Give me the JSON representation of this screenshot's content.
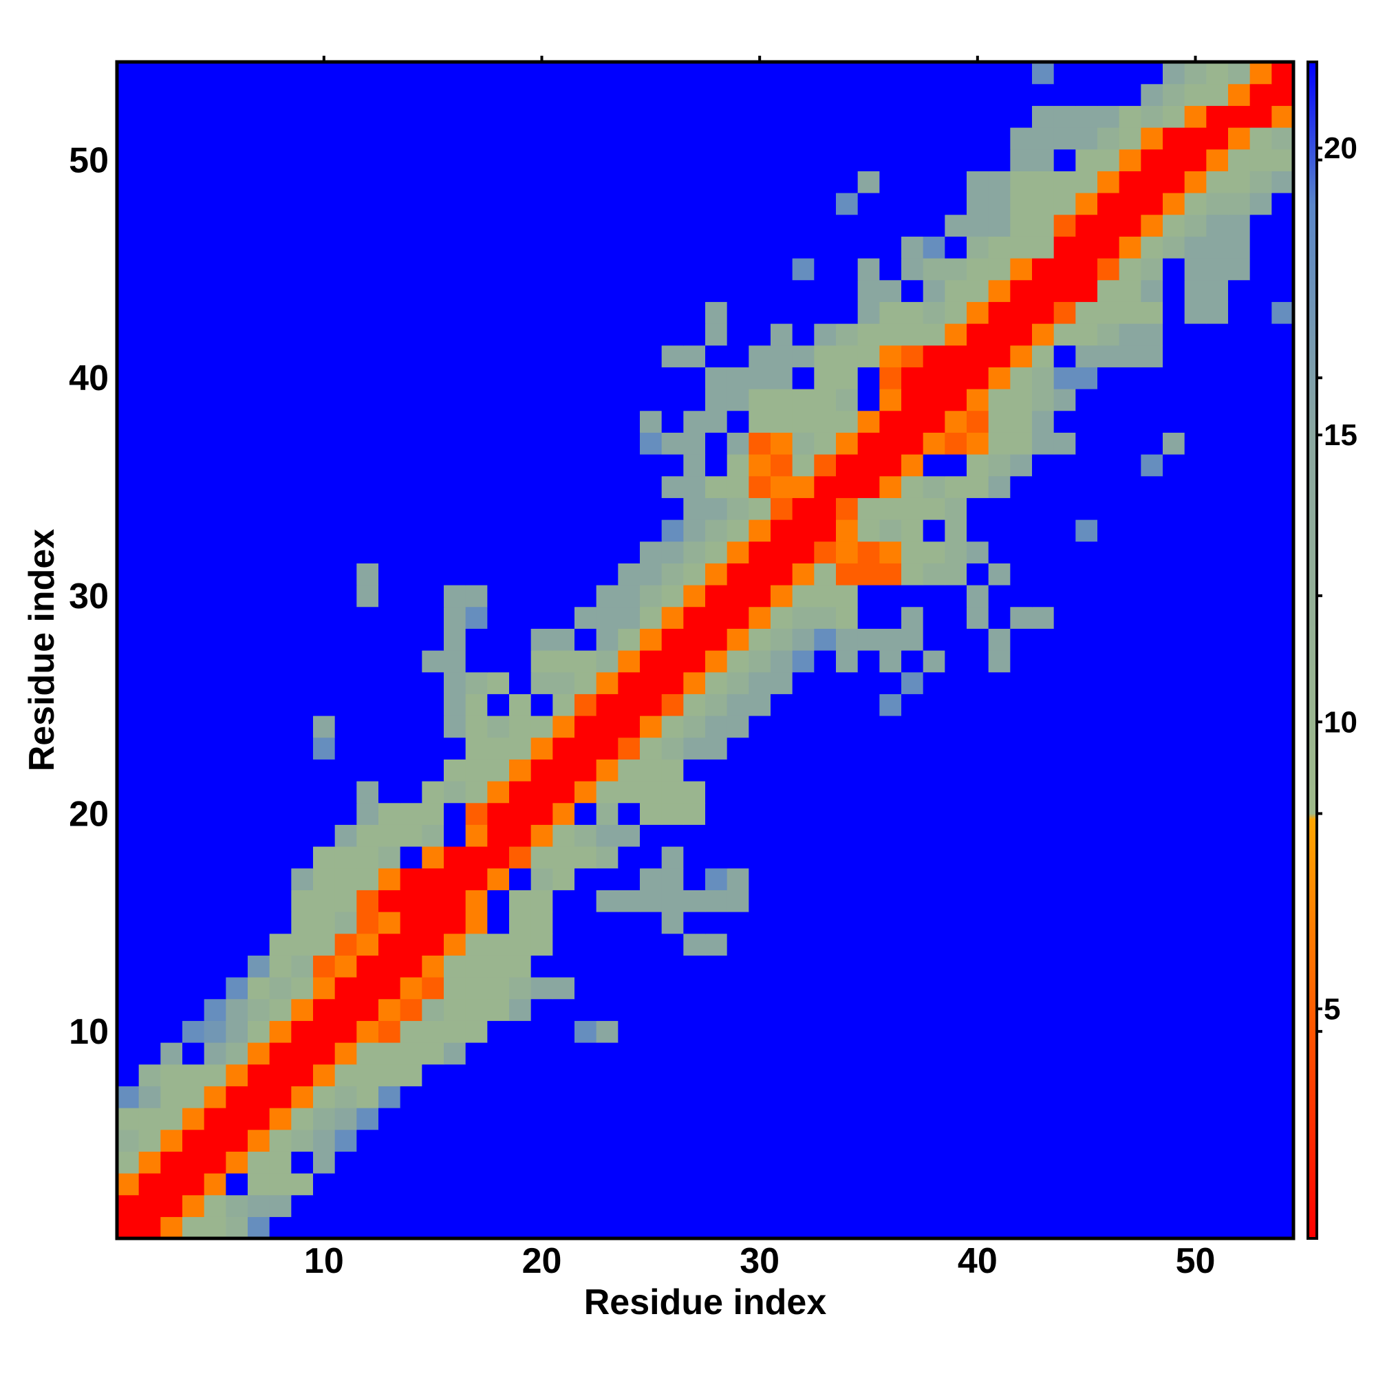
{
  "chart_data": {
    "type": "heatmap",
    "title": "",
    "xlabel": "Residue index",
    "ylabel": "Residue index",
    "n": 54,
    "xlim": [
      0.5,
      54.5
    ],
    "ylim": [
      0.5,
      54.5
    ],
    "x_ticks": [
      10,
      20,
      30,
      40,
      50
    ],
    "y_ticks": [
      10,
      20,
      30,
      40,
      50
    ],
    "colorbar": {
      "min": 1,
      "max": 21.5,
      "ticks": [
        5,
        10,
        15,
        20
      ],
      "stops": [
        {
          "value": 1.0,
          "color": "#ff0000"
        },
        {
          "value": 5.5,
          "color": "#ff6a00"
        },
        {
          "value": 8.3,
          "color": "#ffa500"
        },
        {
          "value": 8.4,
          "color": "#9fba8a"
        },
        {
          "value": 15.0,
          "color": "#8aa7a0"
        },
        {
          "value": 19.0,
          "color": "#5a86c8"
        },
        {
          "value": 21.5,
          "color": "#0000ff"
        }
      ]
    },
    "background_value": 21.5,
    "background_color": "#0000ff",
    "palette": {
      "red": "#ff0000",
      "orange_red": "#ff6a00",
      "orange": "#ffa500",
      "olive": "#9fba8a",
      "gray_blue": "#8aa7a0",
      "steel_blue": "#5a86c8",
      "blue": "#0000ff"
    },
    "cells_by_row": {
      "1": {
        "1": 1,
        "2": 1,
        "3": 6.5,
        "4": 10,
        "5": 10,
        "6": 12,
        "7": 18
      },
      "2": {
        "1": 1,
        "2": 1,
        "3": 1,
        "4": 6.5,
        "5": 10,
        "6": 13,
        "7": 15,
        "8": 15
      },
      "3": {
        "1": 6.5,
        "2": 1,
        "3": 1,
        "4": 1,
        "5": 6.5,
        "7": 10,
        "8": 10,
        "9": 10
      },
      "4": {
        "1": 10,
        "2": 6.5,
        "3": 1,
        "4": 1,
        "5": 1,
        "6": 6.5,
        "7": 10,
        "8": 10,
        "10": 15
      },
      "5": {
        "1": 12,
        "2": 10,
        "3": 6.5,
        "4": 1,
        "5": 1,
        "6": 1,
        "7": 6.5,
        "8": 10,
        "9": 12,
        "10": 15,
        "11": 18
      },
      "6": {
        "1": 10,
        "2": 10,
        "3": 10,
        "4": 6.5,
        "5": 1,
        "6": 1,
        "7": 1,
        "8": 6.5,
        "9": 10,
        "10": 13,
        "11": 15,
        "12": 18
      },
      "7": {
        "1": 18,
        "2": 15,
        "3": 10,
        "4": 10,
        "5": 6.5,
        "6": 1,
        "7": 1,
        "8": 1,
        "9": 6.5,
        "10": 10,
        "11": 12,
        "12": 10,
        "13": 18
      },
      "8": {
        "2": 12,
        "3": 10,
        "4": 10,
        "5": 10,
        "6": 6.5,
        "7": 1,
        "8": 1,
        "9": 1,
        "10": 6.5,
        "11": 10,
        "12": 10,
        "13": 10,
        "14": 10
      },
      "9": {
        "3": 15,
        "5": 15,
        "6": 12,
        "7": 6.5,
        "8": 1,
        "9": 1,
        "10": 1,
        "11": 6.5,
        "12": 10,
        "13": 10,
        "14": 10,
        "15": 10,
        "16": 15
      },
      "10": {
        "4": 18,
        "5": 17,
        "6": 15,
        "7": 10,
        "8": 6.5,
        "9": 1,
        "10": 1,
        "11": 1,
        "12": 6.5,
        "13": 5,
        "14": 10,
        "15": 10,
        "16": 10,
        "17": 10,
        "22": 18,
        "23": 15
      },
      "11": {
        "5": 18,
        "6": 15,
        "7": 12,
        "8": 10,
        "9": 6.5,
        "10": 1,
        "11": 1,
        "12": 1,
        "13": 6.5,
        "14": 5,
        "15": 12,
        "16": 10,
        "17": 10,
        "18": 10,
        "19": 15
      },
      "12": {
        "6": 18,
        "7": 10,
        "8": 12,
        "9": 10,
        "10": 6.5,
        "11": 1,
        "12": 1,
        "13": 1,
        "14": 6.5,
        "15": 5,
        "16": 10,
        "17": 10,
        "18": 10,
        "19": 12,
        "20": 15,
        "21": 15
      },
      "13": {
        "7": 17,
        "8": 10,
        "9": 12,
        "10": 5,
        "11": 6.5,
        "12": 1,
        "13": 1,
        "14": 1,
        "15": 6.5,
        "16": 10,
        "17": 10,
        "18": 10,
        "19": 10
      },
      "14": {
        "8": 10,
        "9": 10,
        "10": 10,
        "11": 5,
        "12": 6.5,
        "13": 1,
        "14": 1,
        "15": 1,
        "16": 6.5,
        "17": 10,
        "18": 10,
        "19": 10,
        "20": 10,
        "27": 15,
        "28": 15
      },
      "15": {
        "9": 10,
        "10": 10,
        "11": 12,
        "12": 5,
        "13": 6.5,
        "14": 1,
        "15": 1,
        "16": 1,
        "17": 6.5,
        "19": 10,
        "20": 10,
        "26": 15
      },
      "16": {
        "9": 10,
        "10": 10,
        "11": 10,
        "12": 5,
        "13": 1,
        "14": 1,
        "15": 1,
        "16": 1,
        "17": 6.5,
        "19": 10,
        "20": 10,
        "23": 15,
        "24": 15,
        "25": 15,
        "26": 15,
        "27": 15,
        "28": 15,
        "29": 15
      },
      "17": {
        "9": 15,
        "10": 10,
        "11": 10,
        "12": 10,
        "13": 6.5,
        "14": 1,
        "15": 1,
        "16": 1,
        "17": 1,
        "18": 6.5,
        "20": 12,
        "21": 10,
        "25": 15,
        "26": 15,
        "28": 18,
        "29": 15
      },
      "18": {
        "10": 10,
        "11": 10,
        "12": 10,
        "13": 12,
        "15": 6.5,
        "16": 1,
        "17": 1,
        "18": 1,
        "19": 5,
        "20": 10,
        "21": 10,
        "22": 10,
        "23": 12,
        "26": 15
      },
      "19": {
        "11": 15,
        "12": 10,
        "13": 10,
        "14": 10,
        "15": 12,
        "17": 6.5,
        "18": 1,
        "19": 1,
        "20": 6.5,
        "21": 10,
        "22": 12,
        "23": 15,
        "24": 15
      },
      "20": {
        "12": 15,
        "13": 10,
        "14": 10,
        "15": 10,
        "17": 5,
        "18": 1,
        "19": 1,
        "20": 1,
        "21": 6.5,
        "23": 12,
        "25": 10,
        "26": 10,
        "27": 10
      },
      "21": {
        "12": 15,
        "15": 10,
        "16": 12,
        "17": 10,
        "18": 6.5,
        "19": 1,
        "20": 1,
        "21": 1,
        "22": 6.5,
        "23": 10,
        "24": 10,
        "25": 10,
        "26": 10,
        "27": 10
      },
      "22": {
        "16": 10,
        "17": 10,
        "18": 10,
        "19": 6.5,
        "20": 1,
        "21": 1,
        "22": 1,
        "23": 6.5,
        "24": 10,
        "25": 10,
        "26": 10
      },
      "23": {
        "10": 18,
        "17": 10,
        "18": 10,
        "19": 10,
        "20": 6.5,
        "21": 1,
        "22": 1,
        "23": 1,
        "24": 5,
        "25": 10,
        "26": 12,
        "27": 15,
        "28": 15
      },
      "24": {
        "10": 15,
        "16": 15,
        "17": 10,
        "18": 12,
        "19": 10,
        "20": 10,
        "21": 6.5,
        "22": 1,
        "23": 1,
        "24": 1,
        "25": 6.5,
        "26": 10,
        "27": 12,
        "28": 15,
        "29": 15
      },
      "25": {
        "16": 15,
        "17": 10,
        "19": 10,
        "21": 10,
        "22": 5,
        "23": 1,
        "24": 1,
        "25": 1,
        "26": 5,
        "27": 10,
        "28": 12,
        "29": 15,
        "30": 15,
        "36": 18
      },
      "26": {
        "16": 15,
        "17": 12,
        "18": 10,
        "20": 12,
        "21": 12,
        "22": 10,
        "23": 6.5,
        "24": 1,
        "25": 1,
        "26": 1,
        "27": 6.5,
        "28": 10,
        "29": 12,
        "30": 15,
        "31": 15,
        "37": 18
      },
      "27": {
        "15": 15,
        "16": 15,
        "20": 10,
        "21": 10,
        "22": 10,
        "23": 12,
        "24": 6.5,
        "25": 1,
        "26": 1,
        "27": 1,
        "28": 6.5,
        "29": 10,
        "30": 12,
        "31": 15,
        "32": 18,
        "34": 15,
        "36": 15,
        "38": 15,
        "41": 15
      },
      "28": {
        "16": 15,
        "20": 15,
        "21": 15,
        "23": 15,
        "24": 10,
        "25": 6.5,
        "26": 1,
        "27": 1,
        "28": 1,
        "29": 6.5,
        "30": 10,
        "31": 12,
        "32": 15,
        "33": 18,
        "34": 15,
        "35": 15,
        "36": 15,
        "37": 15,
        "41": 15
      },
      "29": {
        "16": 15,
        "17": 18,
        "22": 15,
        "23": 15,
        "24": 15,
        "25": 10,
        "26": 6.5,
        "27": 1,
        "28": 1,
        "29": 1,
        "30": 6.5,
        "31": 10,
        "32": 12,
        "33": 12,
        "34": 10,
        "37": 15,
        "40": 15,
        "42": 15,
        "43": 15
      },
      "30": {
        "12": 15,
        "16": 15,
        "17": 15,
        "23": 15,
        "24": 15,
        "25": 12,
        "26": 10,
        "27": 6.5,
        "28": 1,
        "29": 1,
        "30": 1,
        "31": 6.5,
        "32": 10,
        "33": 10,
        "34": 10,
        "40": 15
      },
      "31": {
        "12": 15,
        "24": 15,
        "25": 15,
        "26": 12,
        "27": 10,
        "28": 6.5,
        "29": 1,
        "30": 1,
        "31": 1,
        "32": 6.5,
        "33": 10,
        "34": 5,
        "35": 5,
        "36": 5,
        "37": 10,
        "38": 12,
        "39": 12,
        "41": 15
      },
      "32": {
        "25": 15,
        "26": 15,
        "27": 12,
        "28": 10,
        "29": 6.5,
        "30": 1,
        "31": 1,
        "32": 1,
        "33": 5,
        "34": 6.5,
        "35": 5,
        "36": 6.5,
        "37": 10,
        "38": 10,
        "39": 12,
        "40": 15
      },
      "33": {
        "26": 18,
        "27": 15,
        "28": 12,
        "29": 10,
        "30": 6.5,
        "31": 1,
        "32": 1,
        "33": 1,
        "34": 6.5,
        "35": 10,
        "36": 12,
        "37": 10,
        "39": 12,
        "45": 18
      },
      "34": {
        "27": 15,
        "28": 15,
        "29": 12,
        "30": 10,
        "31": 5,
        "32": 1,
        "33": 1,
        "34": 5,
        "35": 10,
        "36": 10,
        "37": 10,
        "38": 10,
        "39": 12
      },
      "35": {
        "26": 15,
        "27": 15,
        "28": 10,
        "29": 10,
        "30": 5,
        "31": 6.5,
        "32": 6.5,
        "33": 1,
        "34": 1,
        "35": 1,
        "36": 6.5,
        "37": 10,
        "38": 12,
        "39": 10,
        "40": 10,
        "41": 15
      },
      "36": {
        "27": 15,
        "29": 10,
        "30": 6.5,
        "31": 5,
        "32": 10,
        "33": 5,
        "34": 1,
        "35": 1,
        "36": 1,
        "37": 6.5,
        "40": 10,
        "41": 12,
        "42": 15,
        "48": 18
      },
      "37": {
        "25": 18,
        "26": 15,
        "27": 15,
        "29": 15,
        "30": 5,
        "31": 6.5,
        "32": 12,
        "33": 10,
        "34": 6.5,
        "35": 1,
        "36": 1,
        "37": 1,
        "38": 6.5,
        "39": 5,
        "40": 6.5,
        "41": 10,
        "42": 10,
        "43": 15,
        "44": 15,
        "49": 15
      },
      "38": {
        "25": 15,
        "27": 15,
        "28": 15,
        "30": 10,
        "31": 10,
        "32": 10,
        "33": 10,
        "34": 10,
        "35": 6.5,
        "36": 1,
        "37": 1,
        "38": 1,
        "39": 6.5,
        "40": 5,
        "41": 10,
        "42": 10,
        "43": 15
      },
      "39": {
        "28": 15,
        "29": 15,
        "30": 10,
        "31": 10,
        "32": 10,
        "33": 10,
        "34": 12,
        "36": 6.5,
        "37": 1,
        "38": 1,
        "39": 1,
        "40": 6.5,
        "41": 10,
        "42": 10,
        "43": 12,
        "44": 15
      },
      "40": {
        "28": 15,
        "29": 15,
        "30": 15,
        "31": 15,
        "33": 10,
        "34": 10,
        "36": 5,
        "37": 1,
        "38": 1,
        "39": 1,
        "40": 1,
        "41": 6.5,
        "42": 10,
        "43": 12,
        "44": 18,
        "45": 18
      },
      "41": {
        "26": 15,
        "27": 15,
        "30": 15,
        "31": 15,
        "32": 15,
        "33": 10,
        "34": 10,
        "35": 10,
        "36": 6.5,
        "37": 5,
        "38": 1,
        "39": 1,
        "40": 1,
        "41": 1,
        "42": 6.5,
        "43": 10,
        "45": 15,
        "46": 15,
        "47": 15,
        "48": 15
      },
      "42": {
        "28": 15,
        "31": 15,
        "33": 15,
        "34": 12,
        "35": 10,
        "36": 10,
        "37": 10,
        "38": 10,
        "39": 6.5,
        "40": 1,
        "41": 1,
        "42": 1,
        "43": 6.5,
        "44": 10,
        "45": 10,
        "46": 12,
        "47": 15,
        "48": 15
      },
      "43": {
        "28": 15,
        "35": 15,
        "36": 10,
        "37": 10,
        "38": 12,
        "39": 10,
        "40": 6.5,
        "41": 1,
        "42": 1,
        "43": 1,
        "44": 5,
        "45": 10,
        "46": 10,
        "47": 10,
        "48": 10,
        "50": 15,
        "51": 15,
        "54": 18
      },
      "44": {
        "35": 15,
        "36": 15,
        "38": 15,
        "39": 10,
        "40": 10,
        "41": 6.5,
        "42": 1,
        "43": 1,
        "44": 1,
        "45": 1,
        "46": 10,
        "47": 10,
        "48": 15,
        "50": 15,
        "51": 15
      },
      "45": {
        "32": 18,
        "35": 15,
        "37": 15,
        "38": 12,
        "39": 12,
        "40": 10,
        "41": 10,
        "42": 6.5,
        "43": 1,
        "44": 1,
        "45": 1,
        "46": 5,
        "47": 10,
        "48": 12,
        "50": 15,
        "51": 15,
        "52": 15
      },
      "46": {
        "37": 15,
        "38": 18,
        "40": 12,
        "41": 10,
        "42": 10,
        "43": 10,
        "44": 1,
        "45": 1,
        "46": 1,
        "47": 6.5,
        "48": 10,
        "49": 12,
        "50": 15,
        "51": 15,
        "52": 15
      },
      "47": {
        "39": 15,
        "40": 15,
        "41": 15,
        "42": 10,
        "43": 10,
        "44": 5,
        "45": 1,
        "46": 1,
        "47": 1,
        "48": 6.5,
        "49": 10,
        "50": 12,
        "51": 15,
        "52": 15
      },
      "48": {
        "34": 18,
        "40": 15,
        "41": 15,
        "42": 10,
        "43": 10,
        "44": 10,
        "45": 6.5,
        "46": 1,
        "47": 1,
        "48": 1,
        "49": 6.5,
        "50": 10,
        "51": 12,
        "52": 12,
        "53": 15
      },
      "49": {
        "35": 15,
        "40": 15,
        "41": 15,
        "42": 10,
        "43": 10,
        "44": 10,
        "45": 10,
        "46": 6.5,
        "47": 1,
        "48": 1,
        "49": 1,
        "50": 6.5,
        "51": 10,
        "52": 10,
        "53": 12,
        "54": 15
      },
      "50": {
        "42": 15,
        "43": 15,
        "45": 10,
        "46": 10,
        "47": 6.5,
        "48": 1,
        "49": 1,
        "50": 1,
        "51": 6.5,
        "52": 10,
        "53": 10,
        "54": 10
      },
      "51": {
        "42": 15,
        "43": 15,
        "44": 15,
        "45": 15,
        "46": 12,
        "47": 10,
        "48": 6.5,
        "49": 1,
        "50": 1,
        "51": 1,
        "52": 6.5,
        "53": 10,
        "54": 12
      },
      "52": {
        "43": 15,
        "44": 15,
        "45": 15,
        "46": 15,
        "47": 10,
        "48": 12,
        "49": 10,
        "50": 6.5,
        "51": 1,
        "52": 1,
        "53": 1,
        "54": 6.5
      },
      "53": {
        "48": 15,
        "49": 12,
        "50": 10,
        "51": 10,
        "52": 6.5,
        "53": 1,
        "54": 1
      },
      "54": {
        "43": 18,
        "49": 15,
        "50": 12,
        "51": 10,
        "52": 12,
        "53": 6.5,
        "54": 1
      }
    }
  }
}
